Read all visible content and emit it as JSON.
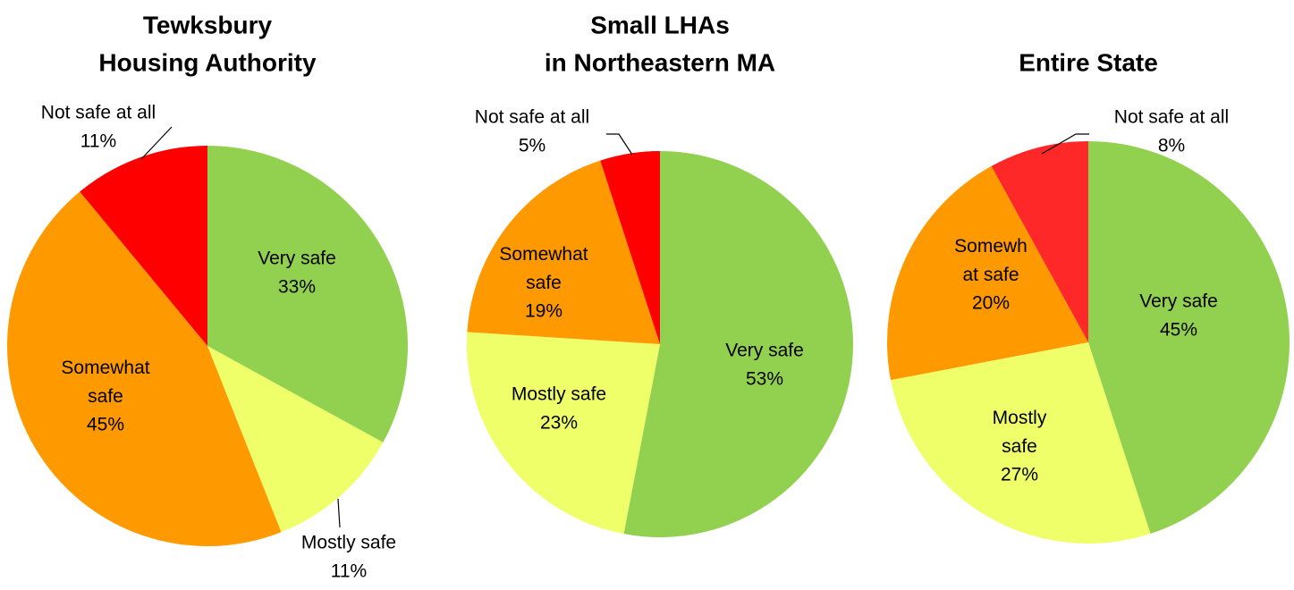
{
  "chart_data": [
    {
      "type": "pie",
      "title": [
        "Tewksbury",
        "Housing Authority"
      ],
      "categories": [
        "Very safe",
        "Mostly safe",
        "Somewhat safe",
        "Not safe at all"
      ],
      "values": [
        33,
        11,
        45,
        11
      ],
      "value_labels": [
        "33%",
        "11%",
        "45%",
        "11%"
      ],
      "colors": [
        "#92d050",
        "#eeff6a",
        "#ff9900",
        "#ff0000"
      ]
    },
    {
      "type": "pie",
      "title": [
        "Small LHAs",
        "in Northeastern MA"
      ],
      "categories": [
        "Very safe",
        "Mostly safe",
        "Somewhat safe",
        "Not safe at all"
      ],
      "values": [
        53,
        23,
        19,
        5
      ],
      "value_labels": [
        "53%",
        "23%",
        "19%",
        "5%"
      ],
      "colors": [
        "#92d050",
        "#eeff6a",
        "#ff9900",
        "#ff0000"
      ]
    },
    {
      "type": "pie",
      "title": [
        "Entire State"
      ],
      "categories": [
        "Very safe",
        "Mostly safe",
        "Somewhat safe",
        "Not safe at all"
      ],
      "values": [
        45,
        27,
        20,
        8
      ],
      "value_labels": [
        "45%",
        "27%",
        "20%",
        "8%"
      ],
      "colors": [
        "#92d050",
        "#eeff6a",
        "#ff9900",
        "#ff2828"
      ]
    }
  ]
}
